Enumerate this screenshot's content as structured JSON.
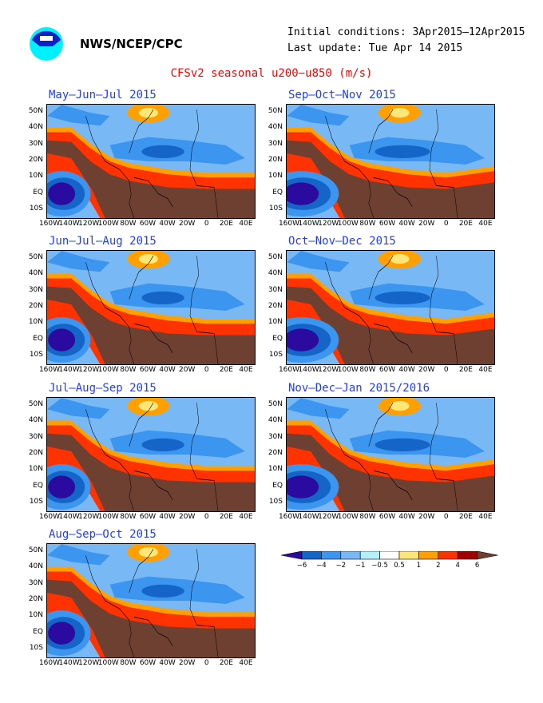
{
  "header": {
    "org": "NWS/NCEP/CPC",
    "initial_conditions": "Initial conditions: 3Apr2015‒12Apr2015",
    "last_update": "Last update: Tue Apr 14 2015",
    "title": "CFSv2 seasonal u200−u850 (m/s)",
    "logo_text": "NOAA"
  },
  "axes": {
    "x_ticks": [
      "160W",
      "140W",
      "120W",
      "100W",
      "80W",
      "60W",
      "40W",
      "20W",
      "0",
      "20E",
      "40E"
    ],
    "y_ticks": [
      "50N",
      "40N",
      "30N",
      "20N",
      "10N",
      "EQ",
      "10S"
    ]
  },
  "panels": [
    {
      "title": "May‒Jun‒Jul 2015"
    },
    {
      "title": "Sep‒Oct‒Nov 2015"
    },
    {
      "title": "Jun‒Jul‒Aug 2015"
    },
    {
      "title": "Oct‒Nov‒Dec 2015"
    },
    {
      "title": "Jul‒Aug‒Sep 2015"
    },
    {
      "title": "Nov‒Dec‒Jan 2015/2016"
    },
    {
      "title": "Aug‒Sep‒Oct 2015"
    }
  ],
  "colorbar": {
    "labels": [
      "−6",
      "−4",
      "−2",
      "−1",
      "−0.5",
      "0.5",
      "1",
      "2",
      "4",
      "6"
    ],
    "colors": [
      "#2a0a9f",
      "#1565c8",
      "#3c96f0",
      "#78b9f5",
      "#b4f0fa",
      "#ffffff",
      "#ffe678",
      "#ffa000",
      "#ff3200",
      "#a00000",
      "#6e4032"
    ]
  }
}
